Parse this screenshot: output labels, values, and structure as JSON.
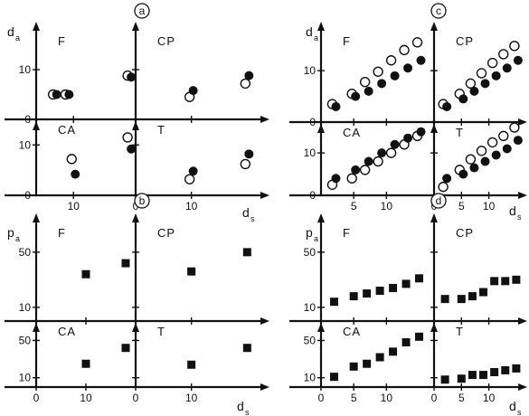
{
  "colors": {
    "ink": "#111111",
    "paper": "#ffffff"
  },
  "chart_data": [
    {
      "id": "a",
      "type": "scatter",
      "label": "a",
      "ylabel": "d",
      "ylabel_sub": "a",
      "xlabel": "d",
      "xlabel_sub": "s",
      "left_yticks": [
        "10",
        "0",
        "10",
        "0"
      ],
      "bottom_xticks": [
        {
          "side": "left",
          "text": "10"
        },
        {
          "side": "right",
          "text": "0"
        },
        {
          "side": "right",
          "text": "10"
        }
      ],
      "panels": [
        {
          "id": "F",
          "label": "F",
          "x": [
            -13,
            -11,
            -1
          ],
          "open": [
            5,
            5,
            8.8
          ],
          "filled": [
            5,
            5,
            8.5
          ]
        },
        {
          "id": "CP",
          "label": "CP",
          "x": [
            10,
            20
          ],
          "open": [
            4.5,
            7.2
          ],
          "filled": [
            5.8,
            8.8
          ]
        },
        {
          "id": "CA",
          "label": "CA",
          "x": [
            -10,
            -1
          ],
          "open": [
            7.2,
            11.5
          ],
          "filled": [
            4.2,
            9.2
          ]
        },
        {
          "id": "T",
          "label": "T",
          "x": [
            10,
            20
          ],
          "open": [
            3.2,
            6.2
          ],
          "filled": [
            4.8,
            8.2
          ]
        }
      ]
    },
    {
      "id": "c",
      "type": "scatter",
      "label": "c",
      "ylabel": "d",
      "ylabel_sub": "a",
      "xlabel": "d",
      "xlabel_sub": "s",
      "left_yticks": [
        "10",
        "0",
        "10",
        "0"
      ],
      "bottom_xticks": [
        {
          "side": "left",
          "text": "5"
        },
        {
          "side": "left",
          "text": "10"
        },
        {
          "side": "right",
          "text": "0"
        },
        {
          "side": "right",
          "text": "5"
        },
        {
          "side": "right",
          "text": "10"
        }
      ],
      "panels": [
        {
          "id": "F",
          "label": "F",
          "x": [
            2,
            5,
            7,
            9,
            11,
            13,
            15
          ],
          "open": [
            3.5,
            5.5,
            7.8,
            9.8,
            12,
            14,
            15.5
          ],
          "filled": [
            3,
            5,
            6,
            7.5,
            9,
            10.5,
            12
          ]
        },
        {
          "id": "CP",
          "label": "CP",
          "x": [
            2,
            5,
            7,
            9,
            11,
            13,
            15
          ],
          "open": [
            3.5,
            5.5,
            7.5,
            9.5,
            11.5,
            13.2,
            14.8
          ],
          "filled": [
            3,
            4.5,
            6,
            7.5,
            9,
            10.5,
            12
          ]
        },
        {
          "id": "CA",
          "label": "CA",
          "x": [
            2,
            5,
            7,
            9,
            11,
            13,
            15
          ],
          "open": [
            2.5,
            4,
            6,
            8,
            10,
            12,
            14
          ],
          "filled": [
            4,
            6,
            8,
            10,
            12,
            13.5,
            15
          ]
        },
        {
          "id": "T",
          "label": "T",
          "x": [
            2,
            5,
            7,
            9,
            11,
            13,
            15
          ],
          "open": [
            2,
            6,
            8.5,
            10.5,
            12.5,
            14,
            16
          ],
          "filled": [
            4,
            5,
            6.5,
            8,
            9.5,
            11,
            13
          ]
        }
      ]
    },
    {
      "id": "b",
      "type": "scatter",
      "label": "b",
      "ylabel": "p",
      "ylabel_sub": "a",
      "xlabel": "d",
      "xlabel_sub": "s",
      "left_yticks": [
        "50",
        "10",
        "50",
        "10"
      ],
      "bottom_xticks": [
        {
          "side": "left",
          "text": "0"
        },
        {
          "side": "left",
          "text": "10"
        },
        {
          "side": "right",
          "text": "0"
        },
        {
          "side": "right",
          "text": "10"
        }
      ],
      "panels": [
        {
          "id": "F",
          "label": "F",
          "x": [
            10,
            18
          ],
          "filled": [
            34,
            42
          ]
        },
        {
          "id": "CP",
          "label": "CP",
          "x": [
            10,
            20
          ],
          "filled": [
            36,
            50
          ]
        },
        {
          "id": "CA",
          "label": "CA",
          "x": [
            10,
            18
          ],
          "filled": [
            25,
            42
          ]
        },
        {
          "id": "T",
          "label": "T",
          "x": [
            10,
            20
          ],
          "filled": [
            24,
            42
          ]
        }
      ]
    },
    {
      "id": "d",
      "type": "scatter",
      "label": "d",
      "ylabel": "p",
      "ylabel_sub": "a",
      "xlabel": "d",
      "xlabel_sub": "s",
      "left_yticks": [
        "50",
        "10",
        "50",
        "10"
      ],
      "bottom_xticks": [
        {
          "side": "left",
          "text": "0"
        },
        {
          "side": "left",
          "text": "5"
        },
        {
          "side": "left",
          "text": "10"
        },
        {
          "side": "right",
          "text": "0"
        },
        {
          "side": "right",
          "text": "5"
        },
        {
          "side": "right",
          "text": "10"
        }
      ],
      "panels": [
        {
          "id": "F",
          "label": "F",
          "x": [
            2,
            5,
            7,
            9,
            11,
            13,
            15
          ],
          "filled": [
            14,
            18,
            20,
            22,
            24,
            27,
            31
          ]
        },
        {
          "id": "CP",
          "label": "CP",
          "x": [
            2,
            5,
            7,
            9,
            11,
            13,
            15
          ],
          "filled": [
            16,
            16,
            18,
            21,
            29,
            29,
            30
          ]
        },
        {
          "id": "CA",
          "label": "CA",
          "x": [
            2,
            5,
            7,
            9,
            11,
            13,
            15
          ],
          "filled": [
            11,
            22,
            25,
            32,
            38,
            48,
            54
          ]
        },
        {
          "id": "T",
          "label": "T",
          "x": [
            2,
            5,
            7,
            9,
            11,
            13,
            15
          ],
          "filled": [
            8,
            9,
            13,
            13,
            16,
            18,
            20
          ]
        }
      ]
    }
  ]
}
